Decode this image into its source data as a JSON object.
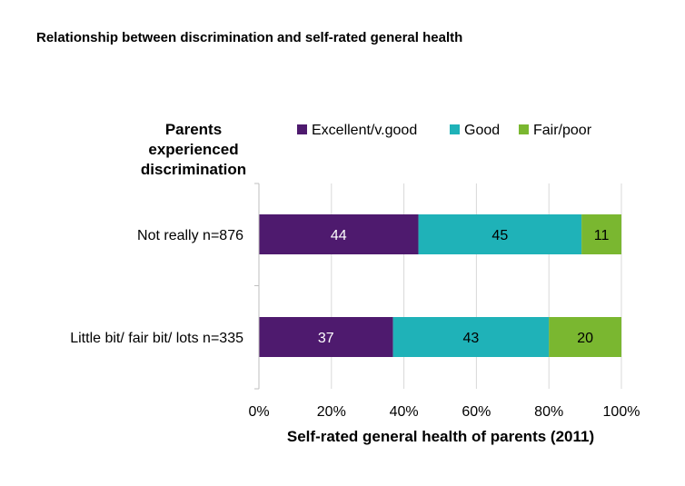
{
  "chart_data": {
    "type": "bar",
    "orientation": "horizontal",
    "stacked": true,
    "title": "Relationship between discrimination and self-rated general health",
    "ylabel": "Parents experienced discrimination",
    "xlabel": "Self-rated general health of parents (2011)",
    "categories": [
      "Not really n=876",
      "Little bit/ fair bit/ lots n=335"
    ],
    "series": [
      {
        "name": "Excellent/v.good",
        "color": "#4e1a6e",
        "values": [
          44,
          37
        ]
      },
      {
        "name": "Good",
        "color": "#1fb2b8",
        "values": [
          45,
          43
        ]
      },
      {
        "name": "Fair/poor",
        "color": "#7ab730",
        "values": [
          11,
          20
        ]
      }
    ],
    "xlim": [
      0,
      100
    ],
    "x_ticks": [
      "0%",
      "20%",
      "40%",
      "60%",
      "80%",
      "100%"
    ],
    "grid": true,
    "legend_position": "top",
    "data_labels": true
  }
}
